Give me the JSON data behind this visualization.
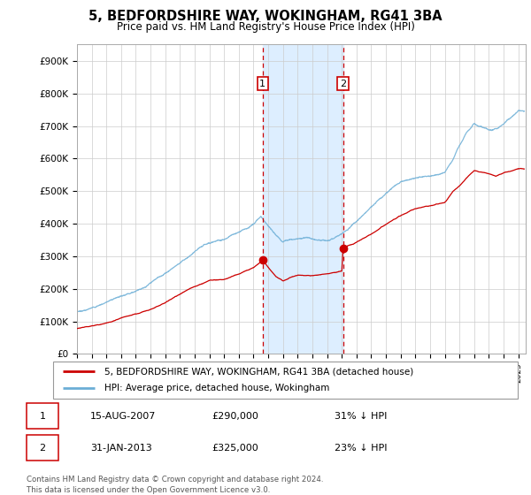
{
  "title": "5, BEDFORDSHIRE WAY, WOKINGHAM, RG41 3BA",
  "subtitle": "Price paid vs. HM Land Registry's House Price Index (HPI)",
  "title_fontsize": 10.5,
  "subtitle_fontsize": 9,
  "ylabel_ticks": [
    "£0",
    "£100K",
    "£200K",
    "£300K",
    "£400K",
    "£500K",
    "£600K",
    "£700K",
    "£800K",
    "£900K"
  ],
  "ytick_values": [
    0,
    100000,
    200000,
    300000,
    400000,
    500000,
    600000,
    700000,
    800000,
    900000
  ],
  "ylim": [
    0,
    950000
  ],
  "xlim_start": 1995.0,
  "xlim_end": 2025.5,
  "xtick_years": [
    1995,
    1996,
    1997,
    1998,
    1999,
    2000,
    2001,
    2002,
    2003,
    2004,
    2005,
    2006,
    2007,
    2008,
    2009,
    2010,
    2011,
    2012,
    2013,
    2014,
    2015,
    2016,
    2017,
    2018,
    2019,
    2020,
    2021,
    2022,
    2023,
    2024,
    2025
  ],
  "hpi_color": "#6baed6",
  "price_color": "#cc0000",
  "shade_color": "#ddeeff",
  "transaction1_date": 2007.62,
  "transaction1_price": 290000,
  "transaction2_date": 2013.08,
  "transaction2_price": 325000,
  "transaction1_label": "1",
  "transaction2_label": "2",
  "legend_line1": "5, BEDFORDSHIRE WAY, WOKINGHAM, RG41 3BA (detached house)",
  "legend_line2": "HPI: Average price, detached house, Wokingham",
  "table_row1": [
    "1",
    "15-AUG-2007",
    "£290,000",
    "31% ↓ HPI"
  ],
  "table_row2": [
    "2",
    "31-JAN-2013",
    "£325,000",
    "23% ↓ HPI"
  ],
  "footnote": "Contains HM Land Registry data © Crown copyright and database right 2024.\nThis data is licensed under the Open Government Licence v3.0.",
  "background_color": "#ffffff",
  "grid_color": "#cccccc",
  "hpi_key_years": [
    1995,
    1996,
    1997,
    1998,
    1999,
    2000,
    2001,
    2002,
    2003,
    2004,
    2005,
    2006,
    2007,
    2007.5,
    2008,
    2008.5,
    2009,
    2009.5,
    2010,
    2010.5,
    2011,
    2011.5,
    2012,
    2012.5,
    2013,
    2014,
    2015,
    2016,
    2017,
    2018,
    2019,
    2020,
    2020.5,
    2021,
    2021.5,
    2022,
    2022.5,
    2023,
    2023.5,
    2024,
    2024.5,
    2025
  ],
  "hpi_key_vals": [
    130000,
    140000,
    160000,
    180000,
    200000,
    225000,
    255000,
    290000,
    320000,
    345000,
    355000,
    375000,
    400000,
    420000,
    395000,
    365000,
    345000,
    355000,
    360000,
    365000,
    362000,
    358000,
    360000,
    368000,
    378000,
    415000,
    455000,
    490000,
    520000,
    535000,
    540000,
    555000,
    590000,
    640000,
    680000,
    710000,
    700000,
    690000,
    695000,
    710000,
    725000,
    745000
  ],
  "price_key_years": [
    1995,
    1996,
    1997,
    1998,
    1999,
    2000,
    2001,
    2002,
    2003,
    2004,
    2005,
    2006,
    2007,
    2007.62,
    2008,
    2008.5,
    2009,
    2009.5,
    2010,
    2011,
    2012,
    2013,
    2013.08,
    2014,
    2015,
    2016,
    2017,
    2018,
    2019,
    2020,
    2020.5,
    2021,
    2021.5,
    2022,
    2022.5,
    2023,
    2023.5,
    2024,
    2024.5,
    2025
  ],
  "price_key_vals": [
    78000,
    85000,
    95000,
    108000,
    122000,
    140000,
    160000,
    185000,
    210000,
    228000,
    232000,
    248000,
    265000,
    290000,
    268000,
    242000,
    228000,
    238000,
    245000,
    242000,
    248000,
    255000,
    325000,
    342000,
    368000,
    400000,
    428000,
    448000,
    455000,
    465000,
    495000,
    515000,
    540000,
    560000,
    555000,
    550000,
    545000,
    555000,
    560000,
    568000
  ]
}
